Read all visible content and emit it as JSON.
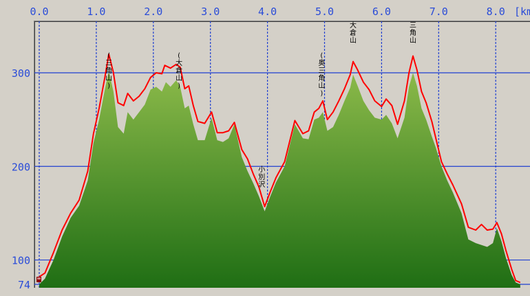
{
  "chart_data": {
    "type": "area",
    "title": "",
    "xlabel": "",
    "ylabel": "",
    "x_unit_label": "[km",
    "xlim": [
      -0.03,
      8.45
    ],
    "ylim": [
      74,
      357
    ],
    "x_ticks": [
      "0.0",
      "1.0",
      "2.0",
      "3.0",
      "4.0",
      "5.0",
      "6.0",
      "7.0",
      "8.0"
    ],
    "y_ticks": [
      "300",
      "200",
      "100",
      "74"
    ],
    "grid": true,
    "colors": {
      "background": "#d4d0c8",
      "plot_background": "#d4d0c8",
      "grid": "#1f3fd1",
      "tick_text": "#2a4cd8",
      "area_top": "#8cba4a",
      "area_bottom": "#1f6e14",
      "line": "#ff0000",
      "frame": "#808080"
    },
    "annotations": [
      {
        "text": "(三角山)",
        "x": 1.22
      },
      {
        "text": "(大倉山)",
        "x": 2.45
      },
      {
        "text": "小別沢",
        "x": 3.9
      },
      {
        "text": "(奥三角山)",
        "x": 4.95
      },
      {
        "text": "大倉山",
        "x": 5.5
      },
      {
        "text": "三角山",
        "x": 6.55
      }
    ],
    "series": [
      {
        "type": "line",
        "points": [
          [
            0.0,
            82
          ],
          [
            0.1,
            86
          ],
          [
            0.25,
            108
          ],
          [
            0.4,
            132
          ],
          [
            0.55,
            150
          ],
          [
            0.7,
            164
          ],
          [
            0.85,
            195
          ],
          [
            0.95,
            235
          ],
          [
            1.05,
            262
          ],
          [
            1.15,
            295
          ],
          [
            1.22,
            320
          ],
          [
            1.3,
            300
          ],
          [
            1.38,
            268
          ],
          [
            1.48,
            265
          ],
          [
            1.55,
            278
          ],
          [
            1.65,
            270
          ],
          [
            1.75,
            275
          ],
          [
            1.85,
            283
          ],
          [
            1.95,
            295
          ],
          [
            2.05,
            300
          ],
          [
            2.15,
            299
          ],
          [
            2.2,
            308
          ],
          [
            2.3,
            305
          ],
          [
            2.4,
            309
          ],
          [
            2.47,
            306
          ],
          [
            2.55,
            283
          ],
          [
            2.62,
            286
          ],
          [
            2.7,
            265
          ],
          [
            2.78,
            248
          ],
          [
            2.9,
            246
          ],
          [
            3.02,
            258
          ],
          [
            3.12,
            236
          ],
          [
            3.22,
            236
          ],
          [
            3.32,
            238
          ],
          [
            3.42,
            247
          ],
          [
            3.55,
            218
          ],
          [
            3.65,
            208
          ],
          [
            3.75,
            192
          ],
          [
            3.85,
            178
          ],
          [
            3.95,
            157
          ],
          [
            4.05,
            173
          ],
          [
            4.15,
            188
          ],
          [
            4.3,
            205
          ],
          [
            4.48,
            249
          ],
          [
            4.62,
            235
          ],
          [
            4.72,
            238
          ],
          [
            4.82,
            258
          ],
          [
            4.9,
            262
          ],
          [
            4.97,
            270
          ],
          [
            5.05,
            250
          ],
          [
            5.15,
            258
          ],
          [
            5.25,
            270
          ],
          [
            5.35,
            283
          ],
          [
            5.45,
            298
          ],
          [
            5.5,
            312
          ],
          [
            5.58,
            303
          ],
          [
            5.68,
            290
          ],
          [
            5.78,
            282
          ],
          [
            5.88,
            270
          ],
          [
            6.0,
            264
          ],
          [
            6.08,
            272
          ],
          [
            6.18,
            265
          ],
          [
            6.28,
            245
          ],
          [
            6.4,
            270
          ],
          [
            6.48,
            300
          ],
          [
            6.55,
            318
          ],
          [
            6.62,
            303
          ],
          [
            6.7,
            280
          ],
          [
            6.78,
            268
          ],
          [
            6.88,
            248
          ],
          [
            6.95,
            230
          ],
          [
            7.05,
            205
          ],
          [
            7.15,
            192
          ],
          [
            7.25,
            180
          ],
          [
            7.4,
            160
          ],
          [
            7.52,
            135
          ],
          [
            7.65,
            132
          ],
          [
            7.75,
            138
          ],
          [
            7.85,
            132
          ],
          [
            7.95,
            133
          ],
          [
            8.02,
            140
          ],
          [
            8.1,
            128
          ],
          [
            8.18,
            110
          ],
          [
            8.28,
            90
          ],
          [
            8.35,
            78
          ],
          [
            8.43,
            76
          ]
        ]
      },
      {
        "type": "area",
        "points": [
          [
            0.0,
            74
          ],
          [
            0.1,
            80
          ],
          [
            0.25,
            100
          ],
          [
            0.4,
            125
          ],
          [
            0.55,
            145
          ],
          [
            0.7,
            158
          ],
          [
            0.85,
            185
          ],
          [
            0.95,
            225
          ],
          [
            1.05,
            250
          ],
          [
            1.15,
            282
          ],
          [
            1.22,
            302
          ],
          [
            1.3,
            280
          ],
          [
            1.38,
            242
          ],
          [
            1.48,
            235
          ],
          [
            1.55,
            258
          ],
          [
            1.65,
            250
          ],
          [
            1.75,
            258
          ],
          [
            1.85,
            266
          ],
          [
            1.95,
            282
          ],
          [
            2.05,
            285
          ],
          [
            2.15,
            280
          ],
          [
            2.22,
            290
          ],
          [
            2.3,
            285
          ],
          [
            2.4,
            292
          ],
          [
            2.47,
            285
          ],
          [
            2.55,
            262
          ],
          [
            2.62,
            265
          ],
          [
            2.7,
            245
          ],
          [
            2.78,
            228
          ],
          [
            2.9,
            228
          ],
          [
            3.02,
            252
          ],
          [
            3.12,
            228
          ],
          [
            3.22,
            226
          ],
          [
            3.32,
            230
          ],
          [
            3.42,
            245
          ],
          [
            3.55,
            210
          ],
          [
            3.65,
            195
          ],
          [
            3.75,
            182
          ],
          [
            3.85,
            168
          ],
          [
            3.95,
            152
          ],
          [
            4.05,
            168
          ],
          [
            4.15,
            183
          ],
          [
            4.3,
            200
          ],
          [
            4.48,
            245
          ],
          [
            4.62,
            230
          ],
          [
            4.72,
            229
          ],
          [
            4.82,
            250
          ],
          [
            4.9,
            252
          ],
          [
            4.97,
            258
          ],
          [
            5.05,
            238
          ],
          [
            5.15,
            242
          ],
          [
            5.25,
            255
          ],
          [
            5.35,
            270
          ],
          [
            5.45,
            284
          ],
          [
            5.5,
            298
          ],
          [
            5.58,
            286
          ],
          [
            5.68,
            270
          ],
          [
            5.78,
            260
          ],
          [
            5.88,
            252
          ],
          [
            6.0,
            250
          ],
          [
            6.08,
            255
          ],
          [
            6.18,
            246
          ],
          [
            6.28,
            230
          ],
          [
            6.4,
            252
          ],
          [
            6.48,
            285
          ],
          [
            6.55,
            300
          ],
          [
            6.62,
            286
          ],
          [
            6.7,
            262
          ],
          [
            6.78,
            250
          ],
          [
            6.88,
            232
          ],
          [
            6.95,
            220
          ],
          [
            7.05,
            200
          ],
          [
            7.15,
            185
          ],
          [
            7.25,
            172
          ],
          [
            7.4,
            150
          ],
          [
            7.52,
            122
          ],
          [
            7.65,
            118
          ],
          [
            7.75,
            116
          ],
          [
            7.85,
            114
          ],
          [
            7.95,
            118
          ],
          [
            8.02,
            134
          ],
          [
            8.1,
            120
          ],
          [
            8.18,
            102
          ],
          [
            8.28,
            84
          ],
          [
            8.35,
            76
          ],
          [
            8.43,
            74
          ]
        ]
      }
    ]
  }
}
